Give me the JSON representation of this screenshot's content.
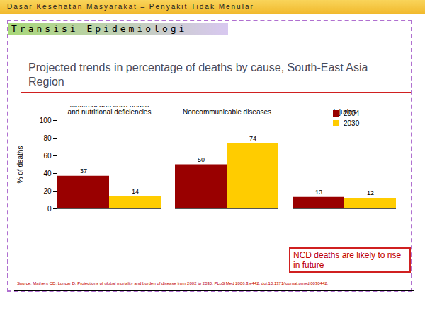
{
  "header": "Dasar Kesehatan Masyarakat – Penyakit Tidak Menular",
  "section_title": "Transisi Epidemiologi",
  "chart_data": {
    "type": "bar",
    "title": "Projected trends in percentage of deaths by cause, South-East Asia Region",
    "y_label": "% of deaths",
    "categories": [
      "Communicable Diseases, maternal and child health and nutritional deficiencies",
      "Noncommunicable diseases",
      "Injuries"
    ],
    "series": [
      {
        "name": "2004",
        "color": "#990000",
        "values": [
          37,
          50,
          13
        ]
      },
      {
        "name": "2030",
        "color": "#ffcc00",
        "values": [
          14,
          74,
          12
        ]
      }
    ],
    "ylim": [
      0,
      100
    ],
    "yticks": [
      0,
      20,
      40,
      60,
      80,
      100
    ],
    "grid": false,
    "legend": "top-right",
    "data_labels": true,
    "annotation": "NCD deaths are likely to rise in future",
    "source": "Source: Mathers CD, Loncar D. Projections of global mortality and burden of disease from 2002 to 2030. PLoS Med 2006;3:e442. doi:10.1371/journal.pmed.0030442."
  }
}
